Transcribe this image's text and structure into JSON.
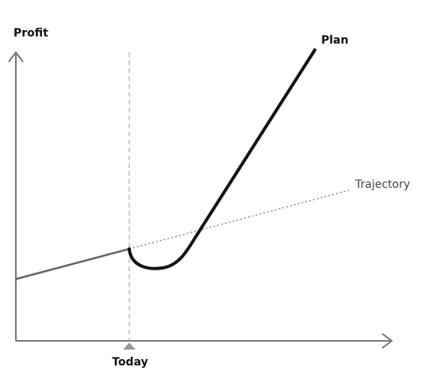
{
  "axes": {
    "y_label": "Profit",
    "x_marker": "Today"
  },
  "lines": {
    "plan": "Plan",
    "trajectory": "Trajectory"
  }
}
